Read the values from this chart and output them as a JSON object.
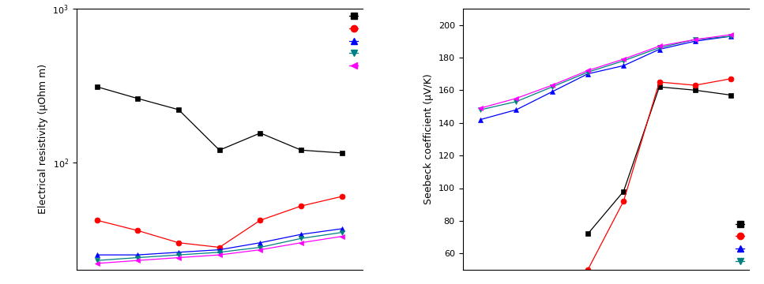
{
  "left": {
    "ylabel": "Electrical resistivity (μOhm m)",
    "ylim": [
      20,
      1000
    ],
    "series": [
      {
        "color": "black",
        "marker": "s",
        "markersize": 5,
        "y": [
          310,
          260,
          220,
          120,
          155,
          120,
          115
        ]
      },
      {
        "color": "red",
        "marker": "o",
        "markersize": 5,
        "y": [
          42,
          36,
          30,
          28,
          42,
          52,
          60
        ]
      },
      {
        "color": "blue",
        "marker": "^",
        "markersize": 5,
        "y": [
          25,
          25,
          26,
          27,
          30,
          34,
          37
        ]
      },
      {
        "color": "teal",
        "marker": "v",
        "markersize": 5,
        "y": [
          23,
          24,
          25,
          26,
          28,
          32,
          35
        ]
      },
      {
        "color": "magenta",
        "marker": "<",
        "markersize": 5,
        "y": [
          22,
          23,
          24,
          25,
          27,
          30,
          33
        ]
      }
    ],
    "legend_markers": [
      "s",
      "o",
      "^",
      "v",
      "<"
    ],
    "legend_colors": [
      "black",
      "red",
      "blue",
      "teal",
      "magenta"
    ],
    "x": [
      1,
      2,
      3,
      4,
      5,
      6,
      7
    ]
  },
  "right": {
    "ylabel": "Seebeck coefficient (μV/K)",
    "ylim": [
      50,
      210
    ],
    "yticks": [
      60,
      80,
      100,
      120,
      140,
      160,
      180,
      200
    ],
    "series": [
      {
        "color": "black",
        "marker": "s",
        "markersize": 5,
        "y": [
          null,
          null,
          null,
          72,
          98,
          162,
          160,
          157
        ]
      },
      {
        "color": "red",
        "marker": "o",
        "markersize": 5,
        "y": [
          null,
          null,
          null,
          50,
          92,
          165,
          163,
          167
        ]
      },
      {
        "color": "blue",
        "marker": "^",
        "markersize": 5,
        "y": [
          142,
          148,
          159,
          170,
          175,
          185,
          190,
          193
        ]
      },
      {
        "color": "teal",
        "marker": "v",
        "markersize": 5,
        "y": [
          148,
          153,
          162,
          171,
          178,
          186,
          191,
          193
        ]
      },
      {
        "color": "magenta",
        "marker": "<",
        "markersize": 5,
        "y": [
          149,
          155,
          163,
          172,
          179,
          187,
          191,
          194
        ]
      }
    ],
    "legend_markers": [
      "s",
      "o",
      "^",
      "v"
    ],
    "legend_colors": [
      "black",
      "red",
      "blue",
      "teal"
    ],
    "legend_line_colors": [
      "gray",
      "lightcoral",
      "blue",
      "teal"
    ],
    "x": [
      1,
      2,
      3,
      4,
      5,
      6,
      7,
      8
    ]
  }
}
